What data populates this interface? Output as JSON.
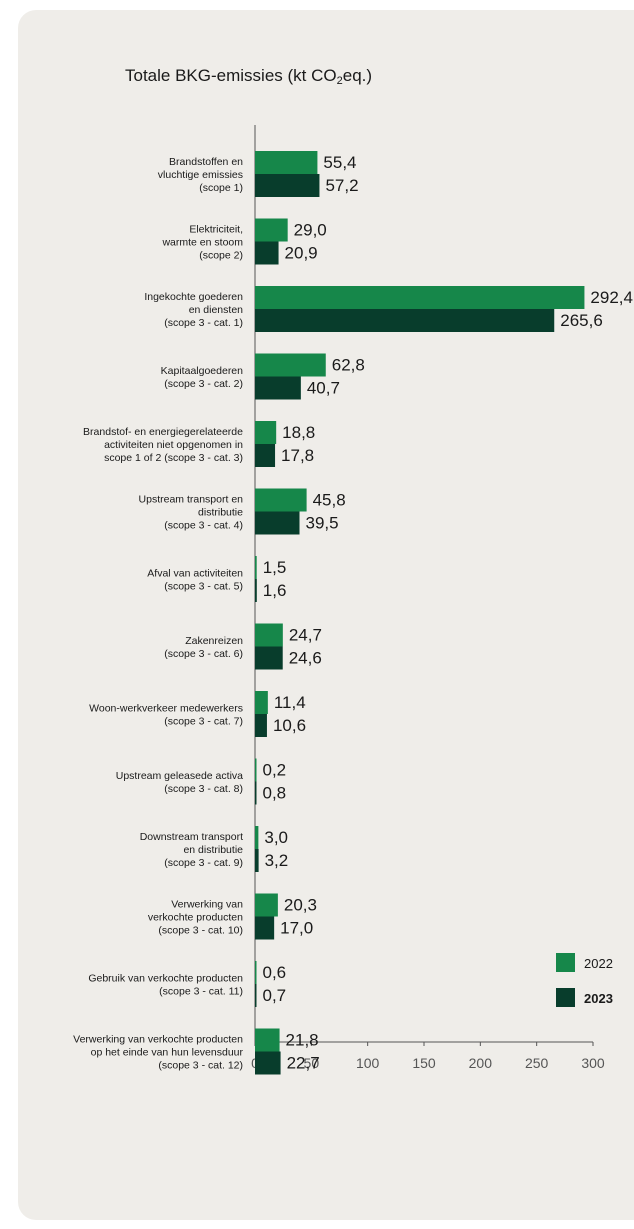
{
  "chart_data": {
    "type": "bar",
    "orientation": "horizontal",
    "title_main": "Totale BKG-emissies (kt CO",
    "title_sub": "2",
    "title_end": "eq.)",
    "xlim": [
      0,
      300
    ],
    "xticks": [
      "0",
      "50",
      "100",
      "150",
      "200",
      "250",
      "300"
    ],
    "categories": [
      [
        "Brandstoffen en",
        "vluchtige emissies",
        "(scope 1)"
      ],
      [
        "Elektriciteit,",
        "warmte en stoom",
        "(scope 2)"
      ],
      [
        "Ingekochte goederen",
        "en diensten",
        "(scope 3 - cat. 1)"
      ],
      [
        "Kapitaalgoederen",
        "(scope 3 - cat. 2)"
      ],
      [
        "Brandstof- en energiegerelateerde",
        "activiteiten niet opgenomen in",
        "scope 1 of 2 (scope 3 - cat. 3)"
      ],
      [
        "Upstream transport en",
        "distributie",
        "(scope 3 - cat. 4)"
      ],
      [
        "Afval van activiteiten",
        "(scope 3 - cat. 5)"
      ],
      [
        "Zakenreizen",
        "(scope 3 - cat. 6)"
      ],
      [
        "Woon-werkverkeer medewerkers",
        "(scope 3 - cat. 7)"
      ],
      [
        "Upstream geleasede activa",
        "(scope 3 - cat. 8)"
      ],
      [
        "Downstream transport",
        "en distributie",
        "(scope 3 - cat. 9)"
      ],
      [
        "Verwerking van",
        "verkochte producten",
        "(scope 3 - cat. 10)"
      ],
      [
        "Gebruik van verkochte producten",
        "(scope 3 - cat. 11)"
      ],
      [
        "Verwerking van verkochte producten",
        "op het einde van hun levensduur",
        "(scope 3 - cat. 12)"
      ]
    ],
    "series": [
      {
        "name": "2022",
        "color": "#16874a",
        "values": [
          55.4,
          29.0,
          292.4,
          62.8,
          18.8,
          45.8,
          1.5,
          24.7,
          11.4,
          0.2,
          3.0,
          20.3,
          0.6,
          21.8
        ],
        "labels": [
          "55,4",
          "29,0",
          "292,4",
          "62,8",
          "18,8",
          "45,8",
          "1,5",
          "24,7",
          "11,4",
          "0,2",
          "3,0",
          "20,3",
          "0,6",
          "21,8"
        ]
      },
      {
        "name": "2023",
        "color": "#083d2c",
        "values": [
          57.2,
          20.9,
          265.6,
          40.7,
          17.8,
          39.5,
          1.6,
          24.6,
          10.6,
          0.8,
          3.2,
          17.0,
          0.7,
          22.7
        ],
        "labels": [
          "57,2",
          "20,9",
          "265,6",
          "40,7",
          "17,8",
          "39,5",
          "1,6",
          "24,6",
          "10,6",
          "0,8",
          "3,2",
          "17,0",
          "0,7",
          "22,7"
        ]
      }
    ],
    "legend": {
      "placement": "right"
    }
  }
}
